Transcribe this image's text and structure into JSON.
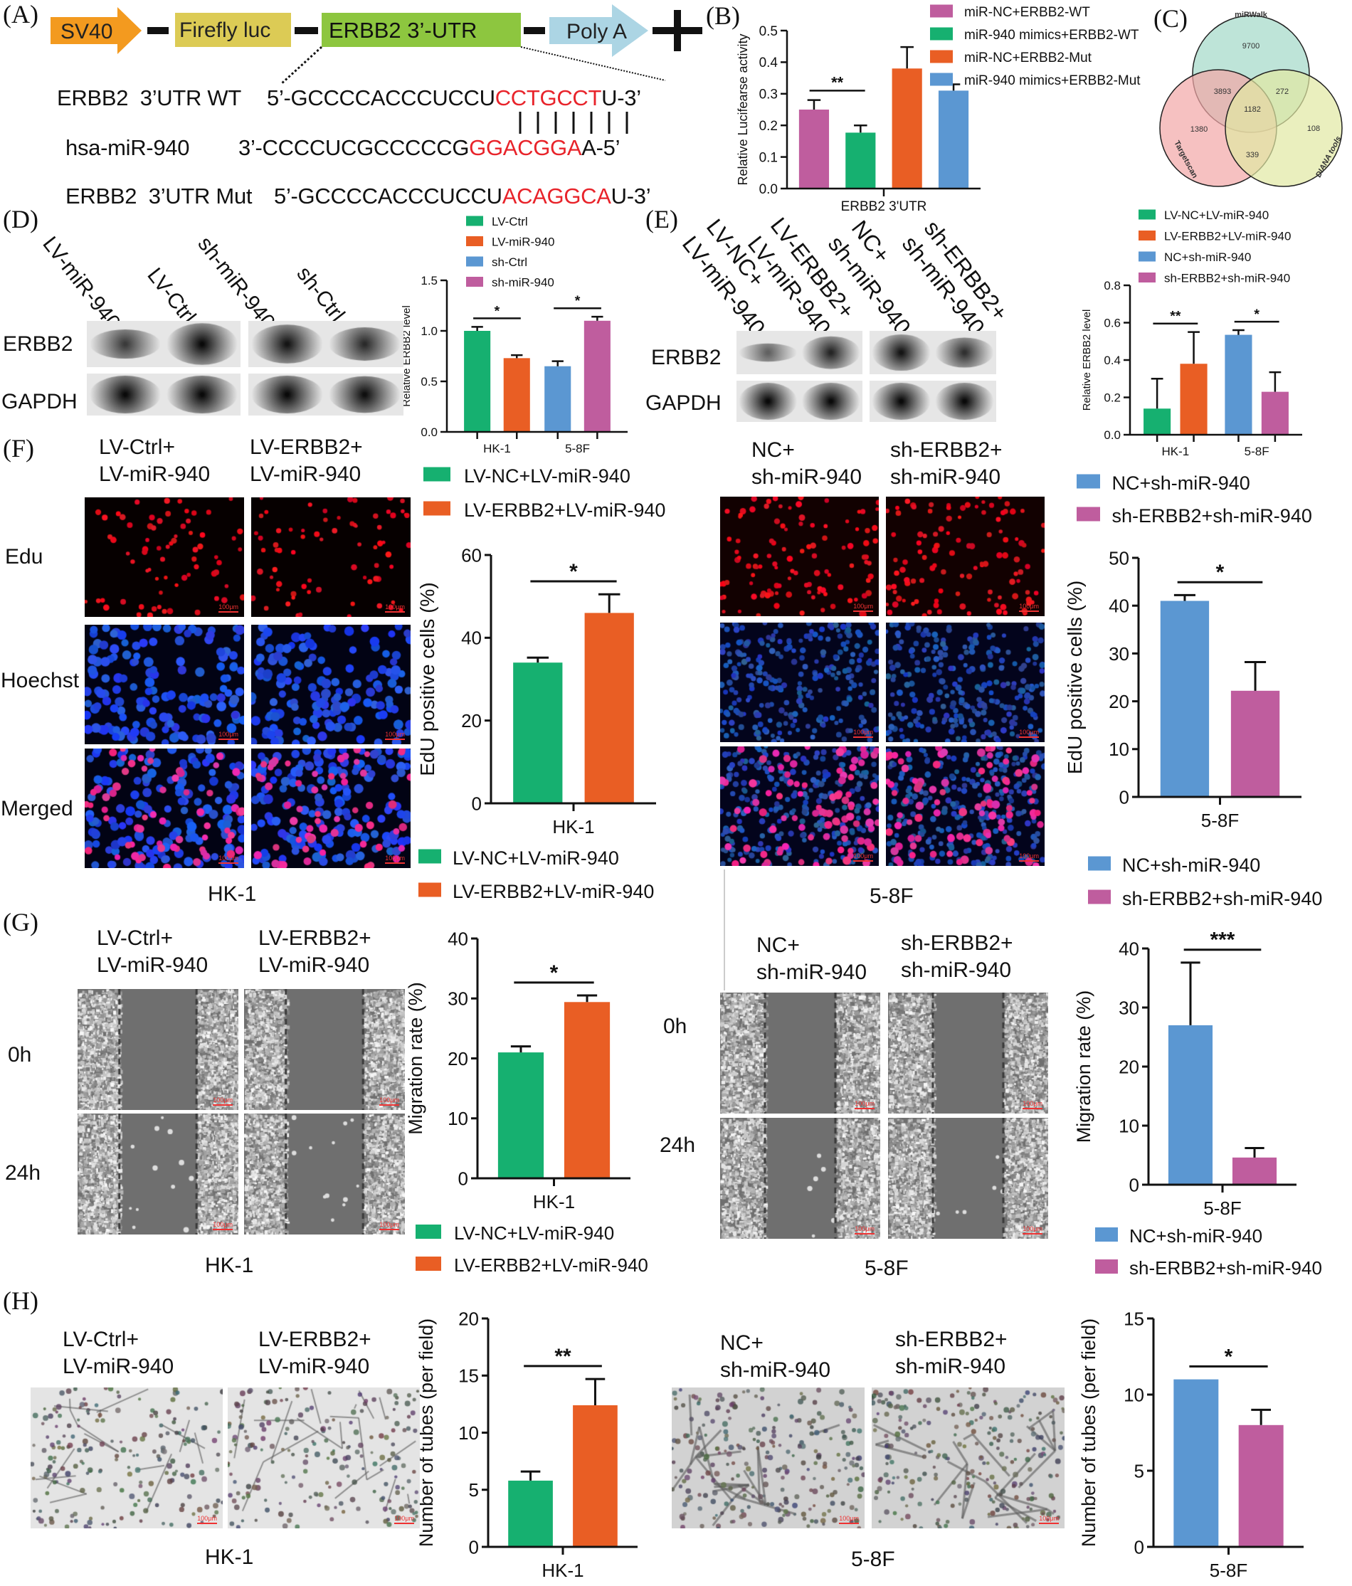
{
  "panel_labels": [
    "(A)",
    "(B)",
    "(C)",
    "(D)",
    "(E)",
    "(F)",
    "(G)",
    "(H)"
  ],
  "construct": {
    "promoter": "SV40",
    "reporter": "Firefly luc",
    "utr": "ERBB2  3’-UTR",
    "polya": "Poly A"
  },
  "sequences": {
    "wt": {
      "label": "ERBB2  3’UTR WT",
      "prefix": "5’-GCCCCACCCUCCU",
      "site": "CCTGCCT",
      "suffix": "U-3’"
    },
    "mir": {
      "label": "hsa-miR-940",
      "prefix": "3’-CCCCUCGCCCCCG",
      "site": "GGACGGA",
      "suffix": "A-5’"
    },
    "mut": {
      "label": "ERBB2  3’UTR Mut",
      "prefix": "5’-GCCCCACCCUCCU",
      "site": "ACAGGCA",
      "suffix": "U-3’"
    },
    "site_color": "#e8232a"
  },
  "venn": {
    "sets": [
      "miRWalk",
      "Targetscan",
      "DIANA tools"
    ],
    "colors": [
      "#b3dfd1",
      "#f2a7a6",
      "#e1e8a3"
    ],
    "regions": {
      "miRWalk_only": "9700",
      "miRWalk_Targetscan": "3893",
      "miRWalk_DIANA": "272",
      "all": "1182",
      "Targetscan_only": "1380",
      "DIANA_only": "108",
      "Targetscan_DIANA": "339"
    }
  },
  "blot_d": {
    "lanes": [
      "LV-miR-940",
      "LV-Ctrl",
      "sh-miR-940",
      "sh-Ctrl"
    ],
    "rows": [
      "ERBB2",
      "GAPDH"
    ]
  },
  "blot_e": {
    "lanes": [
      [
        "LV-NC+",
        "LV-miR-940"
      ],
      [
        "LV-ERBB2+",
        "LV-miR-940"
      ],
      [
        "NC+",
        "sh-miR-940"
      ],
      [
        "sh-ERBB2+",
        "sh-miR-940"
      ]
    ],
    "rows": [
      "ERBB2",
      "GAPDH"
    ]
  },
  "edu": {
    "left": {
      "groups": [
        [
          "LV-Ctrl+",
          "LV-miR-940"
        ],
        [
          "LV-ERBB2+",
          "LV-miR-940"
        ]
      ],
      "rows": [
        "Edu",
        "Hoechst",
        "Merged"
      ],
      "cell_line": "HK-1"
    },
    "right": {
      "groups": [
        [
          "NC+",
          "sh-miR-940"
        ],
        [
          "sh-ERBB2+",
          "sh-miR-940"
        ]
      ],
      "cell_line": "5-8F"
    }
  },
  "migration": {
    "left": {
      "groups": [
        [
          "LV-Ctrl+",
          "LV-miR-940"
        ],
        [
          "LV-ERBB2+",
          "LV-miR-940"
        ]
      ],
      "rows": [
        "0h",
        "24h"
      ],
      "cell_line": "HK-1"
    },
    "right": {
      "groups": [
        [
          "NC+",
          "sh-miR-940"
        ],
        [
          "sh-ERBB2+",
          "sh-miR-940"
        ]
      ],
      "rows": [
        "0h",
        "24h"
      ],
      "cell_line": "5-8F"
    }
  },
  "tube": {
    "left": {
      "groups": [
        [
          "LV-Ctrl+",
          "LV-miR-940"
        ],
        [
          "LV-ERBB2+",
          "LV-miR-940"
        ]
      ],
      "cell_line": "HK-1"
    },
    "right": {
      "groups": [
        [
          "NC+",
          "sh-miR-940"
        ],
        [
          "sh-ERBB2+",
          "sh-miR-940"
        ]
      ],
      "cell_line": "5-8F"
    }
  },
  "scale_bar": "100μm",
  "chart_data": [
    {
      "id": "B",
      "type": "bar",
      "title": "",
      "ylabel": "Relative Lucifearse activity",
      "xlabel": "",
      "ylim": [
        0,
        0.5
      ],
      "yticks": [
        "0.0",
        "0.1",
        "0.2",
        "0.3",
        "0.4",
        "0.5"
      ],
      "categories": [
        "ERBB2 3'UTR"
      ],
      "series": [
        {
          "name": "miR-NC+ERBB2-WT",
          "color": "#bf5d9e",
          "values": [
            0.25
          ],
          "errors": [
            0.03
          ]
        },
        {
          "name": "miR-940 mimics+ERBB2-WT",
          "color": "#16b070",
          "values": [
            0.177
          ],
          "errors": [
            0.023
          ]
        },
        {
          "name": "miR-NC+ERBB2-Mut",
          "color": "#e95e24",
          "values": [
            0.38
          ],
          "errors": [
            0.068
          ]
        },
        {
          "name": "miR-940 mimics+ERBB2-Mut",
          "color": "#5b97d2",
          "values": [
            0.31
          ],
          "errors": [
            0.02
          ]
        }
      ],
      "significance": [
        {
          "bars": [
            0,
            1
          ],
          "label": "**"
        }
      ],
      "legend": "top-right"
    },
    {
      "id": "D",
      "type": "bar",
      "title": "",
      "ylabel": "Relative ERBB2 level",
      "xlabel": "",
      "ylim": [
        0,
        1.5
      ],
      "yticks": [
        "0.0",
        "0.5",
        "1.0",
        "1.5"
      ],
      "categories": [
        "HK-1",
        "5-8F"
      ],
      "series": [
        {
          "name": "LV-Ctrl",
          "color": "#16b070",
          "values": [
            1.0,
            null
          ],
          "errors": [
            0.04,
            null
          ]
        },
        {
          "name": "LV-miR-940",
          "color": "#e95e24",
          "values": [
            0.73,
            null
          ],
          "errors": [
            0.03,
            null
          ]
        },
        {
          "name": "sh-Ctrl",
          "color": "#5b97d2",
          "values": [
            null,
            0.65
          ],
          "errors": [
            null,
            0.05
          ]
        },
        {
          "name": "sh-miR-940",
          "color": "#bf5d9e",
          "values": [
            null,
            1.1
          ],
          "errors": [
            null,
            0.04
          ]
        }
      ],
      "significance": [
        {
          "bars": [
            0,
            1
          ],
          "label": "*"
        },
        {
          "bars": [
            2,
            3
          ],
          "label": "*"
        }
      ],
      "legend": "top"
    },
    {
      "id": "E",
      "type": "bar",
      "title": "",
      "ylabel": "Relative ERBB2 level",
      "xlabel": "",
      "ylim": [
        0,
        0.8
      ],
      "yticks": [
        "0.0",
        "0.2",
        "0.4",
        "0.6",
        "0.8"
      ],
      "categories": [
        "HK-1",
        "5-8F"
      ],
      "series": [
        {
          "name": "LV-NC+LV-miR-940",
          "color": "#16b070",
          "values": [
            0.14,
            null
          ],
          "errors": [
            0.16,
            null
          ]
        },
        {
          "name": "LV-ERBB2+LV-miR-940",
          "color": "#e95e24",
          "values": [
            0.38,
            null
          ],
          "errors": [
            0.17,
            null
          ]
        },
        {
          "name": "NC+sh-miR-940",
          "color": "#5b97d2",
          "values": [
            null,
            0.535
          ],
          "errors": [
            null,
            0.025
          ]
        },
        {
          "name": "sh-ERBB2+sh-miR-940",
          "color": "#bf5d9e",
          "values": [
            null,
            0.23
          ],
          "errors": [
            null,
            0.105
          ]
        }
      ],
      "significance": [
        {
          "bars": [
            0,
            1
          ],
          "label": "**"
        },
        {
          "bars": [
            2,
            3
          ],
          "label": "*"
        }
      ],
      "legend": "top"
    },
    {
      "id": "F1",
      "type": "bar",
      "title": "",
      "ylabel": "EdU positive cells (%)",
      "xlabel": "",
      "ylim": [
        0,
        60
      ],
      "yticks": [
        "0",
        "20",
        "40",
        "60"
      ],
      "categories": [
        "HK-1"
      ],
      "series": [
        {
          "name": "LV-NC+LV-miR-940",
          "color": "#16b070",
          "values": [
            34
          ],
          "errors": [
            1.2
          ]
        },
        {
          "name": "LV-ERBB2+LV-miR-940",
          "color": "#e95e24",
          "values": [
            46
          ],
          "errors": [
            4.5
          ]
        }
      ],
      "significance": [
        {
          "bars": [
            0,
            1
          ],
          "label": "*"
        }
      ],
      "legend": "top and bottom"
    },
    {
      "id": "F2",
      "type": "bar",
      "title": "",
      "ylabel": "EdU positive cells (%)",
      "xlabel": "",
      "ylim": [
        0,
        50
      ],
      "yticks": [
        "0",
        "10",
        "20",
        "30",
        "40",
        "50"
      ],
      "categories": [
        "5-8F"
      ],
      "series": [
        {
          "name": "NC+sh-miR-940",
          "color": "#5b97d2",
          "values": [
            41
          ],
          "errors": [
            1.2
          ]
        },
        {
          "name": "sh-ERBB2+sh-miR-940",
          "color": "#bf5d9e",
          "values": [
            22.2
          ],
          "errors": [
            6
          ]
        }
      ],
      "significance": [
        {
          "bars": [
            0,
            1
          ],
          "label": "*"
        }
      ],
      "legend": "top and bottom"
    },
    {
      "id": "G1",
      "type": "bar",
      "title": "",
      "ylabel": "Migration rate (%)",
      "xlabel": "",
      "ylim": [
        0,
        40
      ],
      "yticks": [
        "0",
        "10",
        "20",
        "30",
        "40"
      ],
      "categories": [
        "HK-1"
      ],
      "series": [
        {
          "name": "LV-NC+LV-miR-940",
          "color": "#16b070",
          "values": [
            21
          ],
          "errors": [
            1
          ]
        },
        {
          "name": "LV-ERBB2+LV-miR-940",
          "color": "#e95e24",
          "values": [
            29.4
          ],
          "errors": [
            1.1
          ]
        }
      ],
      "significance": [
        {
          "bars": [
            0,
            1
          ],
          "label": "*"
        }
      ],
      "legend": "bottom"
    },
    {
      "id": "G2",
      "type": "bar",
      "title": "",
      "ylabel": "Migration rate (%)",
      "xlabel": "",
      "ylim": [
        0,
        40
      ],
      "yticks": [
        "0",
        "10",
        "20",
        "30",
        "40"
      ],
      "categories": [
        "5-8F"
      ],
      "series": [
        {
          "name": "NC+sh-miR-940",
          "color": "#5b97d2",
          "values": [
            27
          ],
          "errors": [
            10.6
          ]
        },
        {
          "name": "sh-ERBB2+sh-miR-940",
          "color": "#bf5d9e",
          "values": [
            4.6
          ],
          "errors": [
            1.6
          ]
        }
      ],
      "significance": [
        {
          "bars": [
            0,
            1
          ],
          "label": "***"
        }
      ],
      "legend": "bottom"
    },
    {
      "id": "H1",
      "type": "bar",
      "title": "",
      "ylabel": "Number of tubes (per field)",
      "xlabel": "",
      "ylim": [
        0,
        20
      ],
      "yticks": [
        "0",
        "5",
        "10",
        "15",
        "20"
      ],
      "categories": [
        "HK-1"
      ],
      "series": [
        {
          "name": "LV-NC+LV-miR-940",
          "color": "#16b070",
          "values": [
            5.8
          ],
          "errors": [
            0.8
          ]
        },
        {
          "name": "LV-ERBB2+LV-miR-940",
          "color": "#e95e24",
          "values": [
            12.4
          ],
          "errors": [
            2.3
          ]
        }
      ],
      "significance": [
        {
          "bars": [
            0,
            1
          ],
          "label": "**"
        }
      ],
      "legend": "none"
    },
    {
      "id": "H2",
      "type": "bar",
      "title": "",
      "ylabel": "Number of tubes (per field)",
      "xlabel": "",
      "ylim": [
        0,
        15
      ],
      "yticks": [
        "0",
        "5",
        "10",
        "15"
      ],
      "categories": [
        "5-8F"
      ],
      "series": [
        {
          "name": "NC+sh-miR-940",
          "color": "#5b97d2",
          "values": [
            11
          ],
          "errors": [
            0
          ]
        },
        {
          "name": "sh-ERBB2+sh-miR-940",
          "color": "#bf5d9e",
          "values": [
            8
          ],
          "errors": [
            1
          ]
        }
      ],
      "significance": [
        {
          "bars": [
            0,
            1
          ],
          "label": "*"
        }
      ],
      "legend": "none"
    }
  ]
}
